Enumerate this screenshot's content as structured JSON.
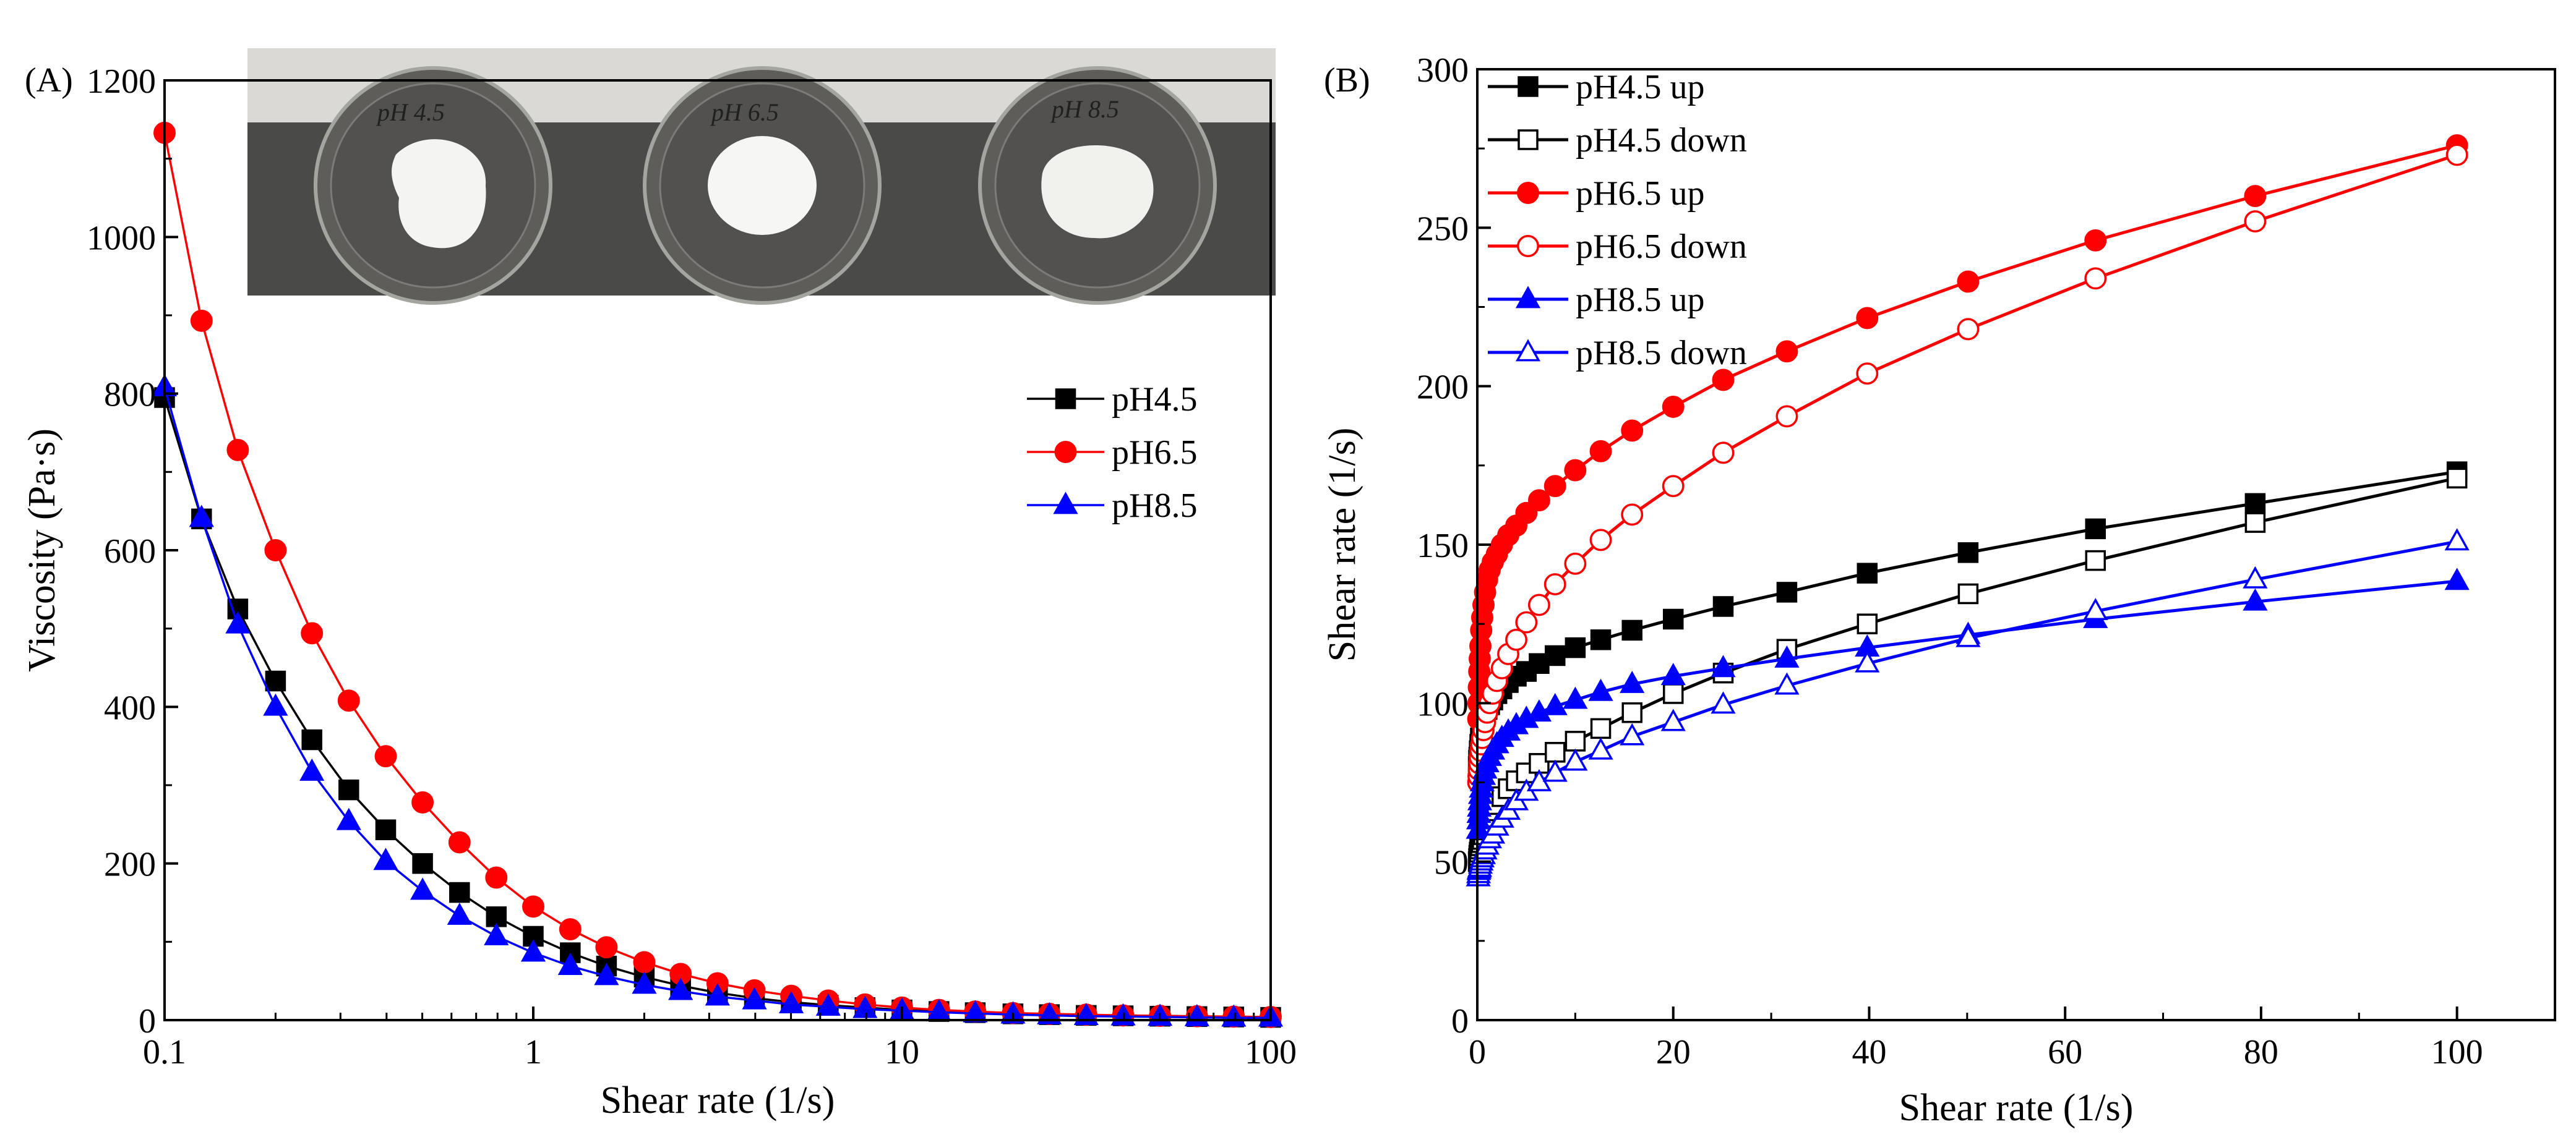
{
  "chart_data": [
    {
      "panel_label": "(A)",
      "type": "line",
      "xlabel": "Shear rate (1/s)",
      "ylabel": "Viscosity (Pa·s)",
      "x_scale": "log",
      "xlim": [
        0.1,
        100
      ],
      "ylim": [
        0,
        1200
      ],
      "x_ticks": [
        0.1,
        1,
        10,
        100
      ],
      "x_tick_labels": [
        "0.1",
        "1",
        "10",
        "100"
      ],
      "y_ticks": [
        0,
        200,
        400,
        600,
        800,
        1000,
        1200
      ],
      "y_tick_labels": [
        "0",
        "200",
        "400",
        "600",
        "800",
        "1000",
        "1200"
      ],
      "grid": false,
      "legend_position": "right-middle",
      "inset_photo_labels": [
        "pH 4.5",
        "pH 6.5",
        "pH 8.5"
      ],
      "x": [
        0.1,
        0.126,
        0.158,
        0.2,
        0.251,
        0.316,
        0.398,
        0.501,
        0.631,
        0.794,
        1,
        1.26,
        1.58,
        2,
        2.51,
        3.16,
        3.98,
        5.01,
        6.31,
        7.94,
        10,
        12.6,
        15.8,
        20,
        25.1,
        31.6,
        39.8,
        50.1,
        63.1,
        79.4,
        100
      ],
      "series": [
        {
          "name": "pH4.5",
          "color": "#000000",
          "marker": "square",
          "filled": true,
          "values": [
            795,
            640,
            525,
            433,
            358,
            294,
            243,
            200,
            163,
            132,
            107,
            86,
            69,
            55,
            44,
            35,
            28,
            23,
            19,
            16,
            13,
            11,
            9.5,
            8,
            7,
            6,
            5.5,
            5,
            4.5,
            4,
            3.5
          ]
        },
        {
          "name": "pH6.5",
          "color": "#ff0000",
          "marker": "circle",
          "filled": true,
          "values": [
            1133,
            893,
            728,
            600,
            494,
            408,
            337,
            278,
            227,
            182,
            145,
            116,
            93,
            74,
            59,
            47,
            38,
            31,
            25,
            20,
            16,
            13,
            11,
            9,
            8,
            7,
            6,
            5.5,
            5,
            4.5,
            4
          ]
        },
        {
          "name": "pH8.5",
          "color": "#0000ff",
          "marker": "triangle",
          "filled": true,
          "values": [
            808,
            641,
            505,
            400,
            317,
            254,
            203,
            165,
            133,
            107,
            86,
            69,
            56,
            45,
            37,
            30,
            25,
            20,
            17,
            14,
            12,
            10,
            8.5,
            7,
            6,
            5,
            4.5,
            4,
            3.5,
            3,
            3
          ]
        }
      ]
    },
    {
      "panel_label": "(B)",
      "type": "line",
      "xlabel": "Shear rate (1/s)",
      "ylabel": "Shear rate (1/s)",
      "xlim": [
        0,
        110
      ],
      "ylim": [
        0,
        300
      ],
      "x_ticks": [
        0,
        20,
        40,
        60,
        80,
        100
      ],
      "x_tick_labels": [
        "0",
        "20",
        "40",
        "60",
        "80",
        "100"
      ],
      "y_ticks": [
        0,
        50,
        100,
        150,
        200,
        250,
        300
      ],
      "y_tick_labels": [
        "0",
        "50",
        "100",
        "150",
        "200",
        "250",
        "300"
      ],
      "grid": false,
      "legend_position": "top-left",
      "x": [
        0.1,
        0.126,
        0.158,
        0.2,
        0.251,
        0.316,
        0.398,
        0.501,
        0.631,
        0.794,
        1,
        1.26,
        1.58,
        2,
        2.51,
        3.16,
        3.98,
        5.01,
        6.31,
        7.94,
        10,
        12.6,
        15.8,
        20,
        25.1,
        31.6,
        39.8,
        50.1,
        63.1,
        79.4,
        100
      ],
      "series": [
        {
          "name": "pH4.5 up",
          "color": "#000000",
          "marker": "square",
          "filled": true,
          "values": [
            80,
            82,
            83,
            85,
            87,
            89,
            91,
            93,
            95,
            96,
            98,
            99.5,
            101,
            103,
            104.5,
            106.5,
            108.5,
            110,
            112.5,
            115,
            117.5,
            120,
            123,
            126.5,
            130.5,
            135,
            141,
            147.5,
            155,
            163,
            173
          ]
        },
        {
          "name": "pH4.5 down",
          "color": "#000000",
          "marker": "square",
          "filled": false,
          "values": [
            50,
            51,
            52,
            53,
            54,
            55,
            56,
            57,
            58.5,
            60,
            62,
            64,
            66,
            68,
            70.5,
            73,
            75.5,
            78,
            81,
            84.5,
            88,
            92,
            97,
            103,
            109.5,
            117,
            125,
            134.5,
            145,
            157,
            171
          ]
        },
        {
          "name": "pH6.5 up",
          "color": "#ff0000",
          "marker": "circle",
          "filled": true,
          "values": [
            95,
            100,
            105,
            110,
            114,
            118,
            123,
            127,
            131,
            135,
            139,
            142,
            144.5,
            147,
            150,
            153,
            156,
            160,
            164,
            168.5,
            173.5,
            179.5,
            186,
            193.5,
            202,
            211,
            221.5,
            233,
            246,
            260,
            276
          ]
        },
        {
          "name": "pH6.5 down",
          "color": "#ff0000",
          "marker": "circle",
          "filled": false,
          "values": [
            75,
            77,
            79,
            81,
            83,
            85,
            87,
            89,
            91.5,
            94,
            97,
            100,
            103,
            107,
            111,
            115.5,
            120,
            125.5,
            131,
            137.5,
            144,
            151.5,
            159.5,
            168.5,
            179,
            190.5,
            204,
            218,
            234,
            252,
            273
          ]
        },
        {
          "name": "pH8.5 up",
          "color": "#0000ff",
          "marker": "triangle",
          "filled": true,
          "values": [
            60,
            63,
            65,
            67,
            69,
            71,
            73,
            75,
            77,
            79,
            81,
            83,
            85,
            87,
            89,
            91,
            93,
            95,
            97,
            99,
            101,
            103.5,
            106,
            108.5,
            111,
            114,
            117.5,
            121.5,
            126.5,
            132,
            138.5
          ]
        },
        {
          "name": "pH8.5 down",
          "color": "#0000ff",
          "marker": "triangle",
          "filled": false,
          "values": [
            45,
            46,
            47,
            47.5,
            48,
            49,
            50,
            51,
            52,
            53.5,
            55,
            57,
            58.5,
            61,
            63.5,
            66,
            69,
            72,
            75,
            78,
            81.5,
            85,
            89.5,
            94,
            99.5,
            105.5,
            112.5,
            120.5,
            129,
            139,
            151
          ]
        }
      ]
    }
  ]
}
